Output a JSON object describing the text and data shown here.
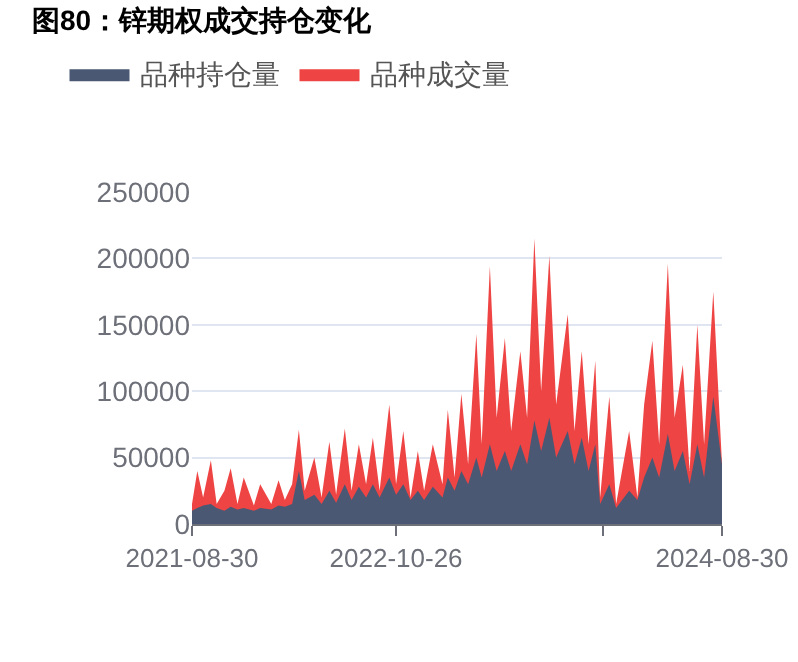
{
  "chart_data": {
    "type": "area",
    "title": "图80：锌期权成交持仓变化",
    "x": [
      "2021-08-30",
      "2021-09-10",
      "2021-09-22",
      "2021-10-08",
      "2021-10-20",
      "2021-11-05",
      "2021-11-18",
      "2021-12-02",
      "2021-12-15",
      "2022-01-05",
      "2022-01-18",
      "2022-02-10",
      "2022-02-25",
      "2022-03-10",
      "2022-03-25",
      "2022-04-08",
      "2022-04-20",
      "2022-05-10",
      "2022-05-25",
      "2022-06-10",
      "2022-06-24",
      "2022-07-12",
      "2022-07-26",
      "2022-08-10",
      "2022-08-25",
      "2022-09-08",
      "2022-09-22",
      "2022-10-12",
      "2022-10-26",
      "2022-11-10",
      "2022-11-25",
      "2022-12-10",
      "2022-12-23",
      "2023-01-10",
      "2023-01-30",
      "2023-02-10",
      "2023-02-24",
      "2023-03-10",
      "2023-03-24",
      "2023-04-10",
      "2023-04-21",
      "2023-05-08",
      "2023-05-22",
      "2023-06-08",
      "2023-06-21",
      "2023-07-10",
      "2023-07-24",
      "2023-08-08",
      "2023-08-22",
      "2023-09-08",
      "2023-09-22",
      "2023-10-16",
      "2023-10-30",
      "2023-11-14",
      "2023-11-28",
      "2023-12-12",
      "2023-12-22",
      "2024-01-10",
      "2024-01-24",
      "2024-02-20",
      "2024-03-08",
      "2024-03-22",
      "2024-04-08",
      "2024-04-22",
      "2024-05-10",
      "2024-05-24",
      "2024-06-10",
      "2024-06-24",
      "2024-07-10",
      "2024-07-24",
      "2024-08-12",
      "2024-08-30"
    ],
    "series": [
      {
        "name": "品种持仓量",
        "color": "#4b5874",
        "values": [
          10000,
          12000,
          14000,
          15000,
          12000,
          10000,
          13000,
          11000,
          12000,
          10000,
          12000,
          11000,
          14000,
          13000,
          15000,
          40000,
          18000,
          22000,
          15000,
          25000,
          16000,
          30000,
          18000,
          28000,
          20000,
          30000,
          20000,
          35000,
          22000,
          30000,
          18000,
          25000,
          18000,
          28000,
          20000,
          35000,
          25000,
          40000,
          30000,
          50000,
          35000,
          60000,
          40000,
          55000,
          40000,
          60000,
          45000,
          78000,
          55000,
          80000,
          50000,
          70000,
          45000,
          65000,
          40000,
          60000,
          15000,
          30000,
          12000,
          25000,
          18000,
          35000,
          50000,
          35000,
          68000,
          40000,
          55000,
          30000,
          60000,
          35000,
          96000,
          45000
        ]
      },
      {
        "name": "品种成交量",
        "color": "#ef4444",
        "values": [
          15000,
          40000,
          20000,
          48000,
          15000,
          25000,
          42000,
          15000,
          35000,
          14000,
          30000,
          15000,
          33000,
          18000,
          30000,
          71000,
          25000,
          50000,
          20000,
          62000,
          22000,
          72000,
          25000,
          60000,
          30000,
          65000,
          25000,
          90000,
          30000,
          70000,
          20000,
          55000,
          25000,
          60000,
          30000,
          86000,
          35000,
          98000,
          45000,
          143000,
          60000,
          194000,
          80000,
          140000,
          70000,
          130000,
          80000,
          215000,
          100000,
          202000,
          90000,
          158000,
          70000,
          130000,
          60000,
          123000,
          20000,
          96000,
          15000,
          70000,
          20000,
          90000,
          138000,
          60000,
          196000,
          80000,
          120000,
          40000,
          150000,
          60000,
          175000,
          45000
        ]
      }
    ],
    "xlim": [
      "2021-08-30",
      "2024-08-30"
    ],
    "xticks": [
      {
        "value": "2021-08-30",
        "label": "2021-08-30"
      },
      {
        "value": "2022-10-26",
        "label": "2022-10-26"
      },
      {
        "value": "2023-12-27",
        "label": null
      },
      {
        "value": "2024-08-30",
        "label": "2024-08-30"
      }
    ],
    "ylim": [
      0,
      250000
    ],
    "yticks": [
      0,
      50000,
      100000,
      150000,
      200000,
      250000
    ],
    "grid": "y",
    "legend": "top left"
  }
}
